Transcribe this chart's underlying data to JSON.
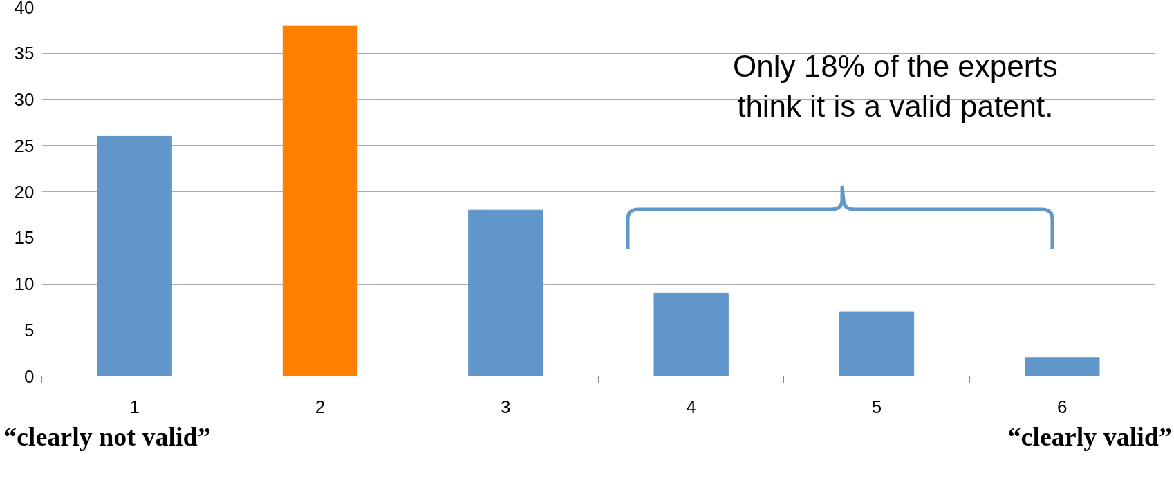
{
  "chart_data": {
    "type": "bar",
    "categories": [
      "1",
      "2",
      "3",
      "4",
      "5",
      "6"
    ],
    "values": [
      26,
      38,
      18,
      9,
      7,
      2
    ],
    "colors": [
      "#6096c9",
      "#ff7f00",
      "#6096c9",
      "#6096c9",
      "#6096c9",
      "#6096c9"
    ],
    "ylim": [
      0,
      40
    ],
    "yticks": [
      0,
      5,
      10,
      15,
      20,
      25,
      30,
      35,
      40
    ],
    "grid": "y",
    "annotations": [
      "Only 18% of the experts think it is a valid patent.",
      "“clearly not valid”",
      "“clearly valid”"
    ]
  }
}
